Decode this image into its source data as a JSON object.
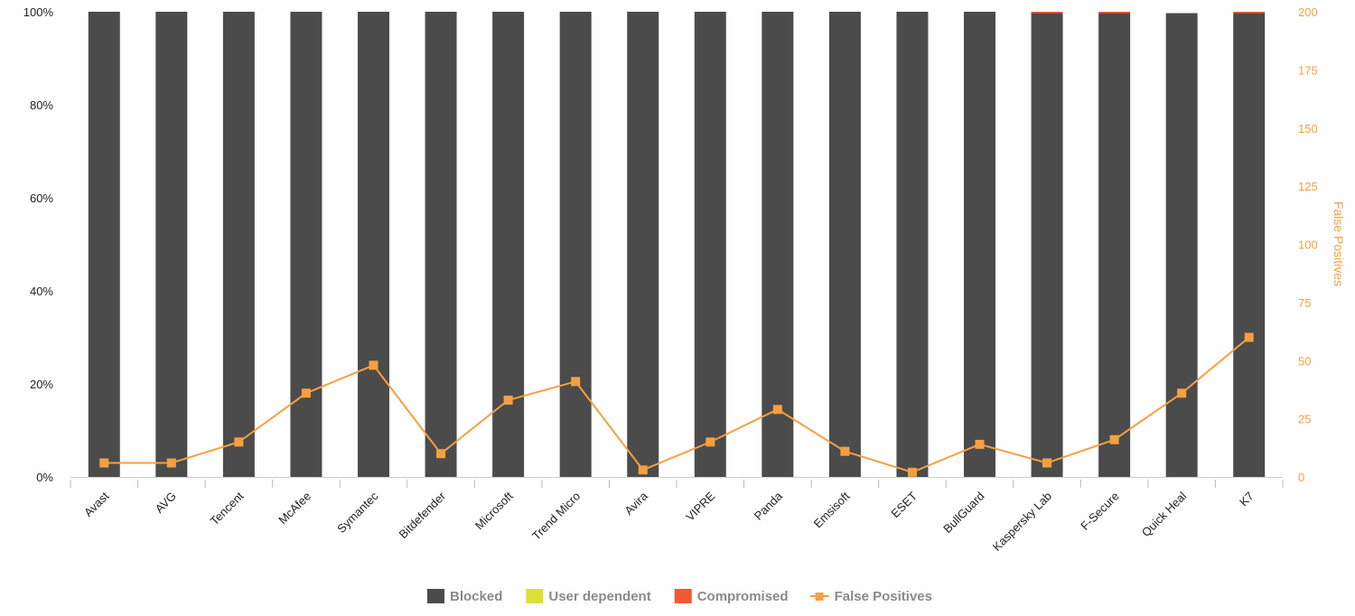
{
  "chart_data": {
    "type": "bar",
    "stacked": true,
    "categories": [
      "Avast",
      "AVG",
      "Tencent",
      "McAfee",
      "Symantec",
      "Bitdefender",
      "Microsoft",
      "Trend Micro",
      "Avira",
      "VIPRE",
      "Panda",
      "Emsisoft",
      "ESET",
      "BullGuard",
      "Kaspersky Lab",
      "F-Secure",
      "Quick Heal",
      "K7"
    ],
    "series": [
      {
        "name": "Blocked",
        "type": "bar",
        "axis": "left",
        "color": "#4b4b4b",
        "values": [
          100,
          100,
          100,
          100,
          100,
          100,
          100,
          100,
          100,
          100,
          100,
          100,
          100,
          100,
          99.7,
          99.7,
          99.7,
          99.7
        ]
      },
      {
        "name": "User dependent",
        "type": "bar",
        "axis": "left",
        "color": "#dede36",
        "values": [
          0,
          0,
          0,
          0,
          0,
          0,
          0,
          0,
          0,
          0,
          0,
          0,
          0,
          0,
          0,
          0,
          0,
          0
        ]
      },
      {
        "name": "Compromised",
        "type": "bar",
        "axis": "left",
        "color": "#f05a32",
        "values": [
          0,
          0,
          0,
          0,
          0,
          0,
          0,
          0,
          0,
          0,
          0,
          0,
          0,
          0,
          0.3,
          0.3,
          0,
          0.3
        ]
      },
      {
        "name": "False Positives",
        "type": "line",
        "axis": "right",
        "color": "#f5a040",
        "values": [
          6,
          6,
          15,
          36,
          48,
          10,
          33,
          41,
          3,
          15,
          29,
          11,
          2,
          14,
          6,
          16,
          36,
          60
        ]
      }
    ],
    "y_axis_left": {
      "range": [
        0,
        100
      ],
      "ticks": [
        0,
        20,
        40,
        60,
        80,
        100
      ],
      "tick_labels": [
        "0%",
        "20%",
        "40%",
        "60%",
        "80%",
        "100%"
      ]
    },
    "y_axis_right": {
      "label": "False Positives",
      "range": [
        0,
        200
      ],
      "ticks": [
        0,
        25,
        50,
        75,
        100,
        125,
        150,
        175,
        200
      ],
      "tick_labels": [
        "0",
        "25",
        "50",
        "75",
        "100",
        "125",
        "150",
        "175",
        "200"
      ]
    },
    "legend_position": "bottom-center",
    "grid": false
  }
}
